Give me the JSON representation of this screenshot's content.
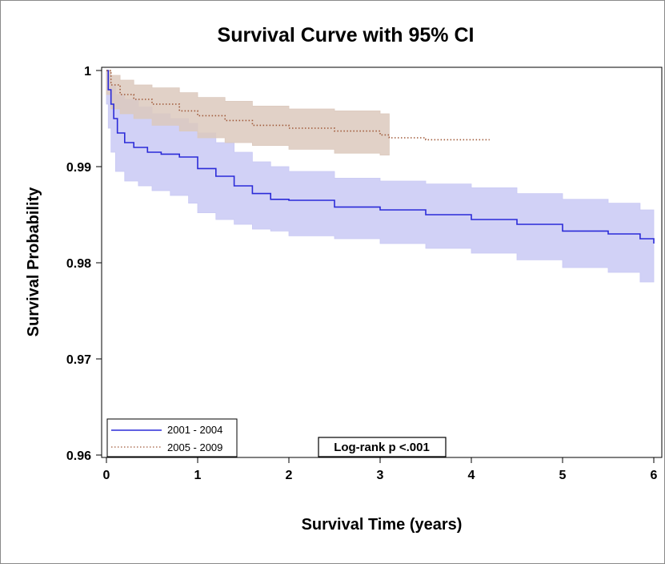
{
  "chart_data": {
    "type": "line",
    "title": "Survival Curve with 95% CI",
    "xlabel": "Survival Time (years)",
    "ylabel": "Survival Probability",
    "xlim": [
      0,
      6
    ],
    "ylim": [
      0.96,
      1.0
    ],
    "x_ticks": [
      "0",
      "1",
      "2",
      "3",
      "4",
      "5",
      "6"
    ],
    "y_ticks": [
      "0.96",
      "0.97",
      "0.98",
      "0.99",
      "1"
    ],
    "grid": false,
    "legend_position": "bottom-left",
    "annotation": "Log-rank p <.001",
    "series": [
      {
        "name": "2001 - 2004",
        "color": "#2b2bd8",
        "line_style": "solid",
        "band_color": "#c9c9f4",
        "points": [
          [
            0,
            1.0
          ],
          [
            0.02,
            0.998
          ],
          [
            0.05,
            0.9965
          ],
          [
            0.08,
            0.995
          ],
          [
            0.12,
            0.9935
          ],
          [
            0.2,
            0.9925
          ],
          [
            0.3,
            0.992
          ],
          [
            0.45,
            0.9915
          ],
          [
            0.6,
            0.9913
          ],
          [
            0.8,
            0.991
          ],
          [
            1.0,
            0.9898
          ],
          [
            1.2,
            0.989
          ],
          [
            1.4,
            0.988
          ],
          [
            1.6,
            0.9872
          ],
          [
            1.8,
            0.9866
          ],
          [
            2.0,
            0.9865
          ],
          [
            2.5,
            0.9858
          ],
          [
            3.0,
            0.9855
          ],
          [
            3.5,
            0.985
          ],
          [
            4.0,
            0.9845
          ],
          [
            4.5,
            0.984
          ],
          [
            5.0,
            0.9833
          ],
          [
            5.5,
            0.983
          ],
          [
            5.85,
            0.9825
          ],
          [
            6.0,
            0.982
          ]
        ],
        "ci_upper": [
          [
            0,
            1.0
          ],
          [
            0.02,
            0.9995
          ],
          [
            0.05,
            0.9985
          ],
          [
            0.1,
            0.9975
          ],
          [
            0.2,
            0.997
          ],
          [
            0.35,
            0.9962
          ],
          [
            0.5,
            0.9955
          ],
          [
            0.7,
            0.995
          ],
          [
            0.9,
            0.9945
          ],
          [
            1.0,
            0.9935
          ],
          [
            1.2,
            0.9925
          ],
          [
            1.4,
            0.9915
          ],
          [
            1.6,
            0.9905
          ],
          [
            1.8,
            0.99
          ],
          [
            2.0,
            0.9895
          ],
          [
            2.5,
            0.9888
          ],
          [
            3.0,
            0.9885
          ],
          [
            3.5,
            0.9882
          ],
          [
            4.0,
            0.9878
          ],
          [
            4.5,
            0.9872
          ],
          [
            5.0,
            0.9866
          ],
          [
            5.5,
            0.9862
          ],
          [
            5.85,
            0.9855
          ],
          [
            6.0,
            0.9855
          ]
        ],
        "ci_lower": [
          [
            0,
            1.0
          ],
          [
            0.02,
            0.9965
          ],
          [
            0.05,
            0.994
          ],
          [
            0.1,
            0.9915
          ],
          [
            0.2,
            0.9895
          ],
          [
            0.35,
            0.9885
          ],
          [
            0.5,
            0.988
          ],
          [
            0.7,
            0.9875
          ],
          [
            0.9,
            0.987
          ],
          [
            1.0,
            0.9862
          ],
          [
            1.2,
            0.9852
          ],
          [
            1.4,
            0.9845
          ],
          [
            1.6,
            0.984
          ],
          [
            1.8,
            0.9835
          ],
          [
            2.0,
            0.9833
          ],
          [
            2.5,
            0.9828
          ],
          [
            3.0,
            0.9825
          ],
          [
            3.5,
            0.982
          ],
          [
            4.0,
            0.9815
          ],
          [
            4.5,
            0.981
          ],
          [
            5.0,
            0.9803
          ],
          [
            5.5,
            0.9795
          ],
          [
            5.85,
            0.979
          ],
          [
            6.0,
            0.978
          ]
        ]
      },
      {
        "name": "2005 - 2009",
        "color": "#a05a3a",
        "line_style": "dotted",
        "band_color": "#dcc9bd",
        "points": [
          [
            0,
            1.0
          ],
          [
            0.05,
            0.9985
          ],
          [
            0.15,
            0.9975
          ],
          [
            0.3,
            0.997
          ],
          [
            0.5,
            0.9965
          ],
          [
            0.8,
            0.9958
          ],
          [
            1.0,
            0.9953
          ],
          [
            1.3,
            0.9948
          ],
          [
            1.6,
            0.9943
          ],
          [
            2.0,
            0.994
          ],
          [
            2.5,
            0.9937
          ],
          [
            3.0,
            0.9933
          ],
          [
            3.1,
            0.993
          ],
          [
            3.5,
            0.9928
          ],
          [
            4.2,
            0.9928
          ]
        ],
        "ci_upper": [
          [
            0,
            1.0
          ],
          [
            0.05,
            0.9995
          ],
          [
            0.15,
            0.999
          ],
          [
            0.3,
            0.9985
          ],
          [
            0.5,
            0.9982
          ],
          [
            0.8,
            0.9977
          ],
          [
            1.0,
            0.9972
          ],
          [
            1.3,
            0.9968
          ],
          [
            1.6,
            0.9963
          ],
          [
            2.0,
            0.996
          ],
          [
            2.5,
            0.9958
          ],
          [
            3.0,
            0.9955
          ],
          [
            3.1,
            0.9953
          ]
        ],
        "ci_lower": [
          [
            0,
            1.0
          ],
          [
            0.05,
            0.9975
          ],
          [
            0.15,
            0.996
          ],
          [
            0.3,
            0.9955
          ],
          [
            0.5,
            0.995
          ],
          [
            0.8,
            0.9943
          ],
          [
            1.0,
            0.9937
          ],
          [
            1.3,
            0.993
          ],
          [
            1.6,
            0.9925
          ],
          [
            2.0,
            0.9922
          ],
          [
            2.5,
            0.9918
          ],
          [
            3.0,
            0.9914
          ],
          [
            3.1,
            0.9912
          ]
        ]
      }
    ]
  }
}
